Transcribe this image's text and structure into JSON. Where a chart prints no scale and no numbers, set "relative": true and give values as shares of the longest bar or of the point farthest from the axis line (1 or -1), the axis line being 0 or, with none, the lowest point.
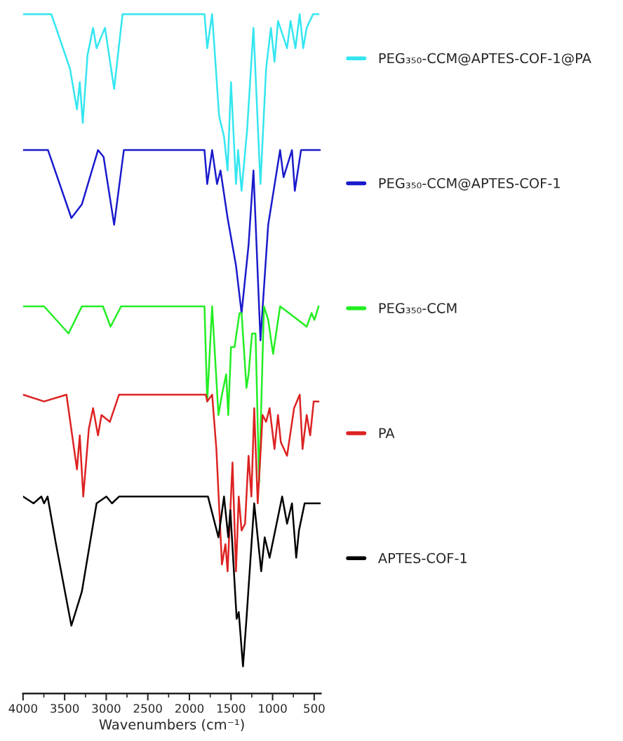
{
  "chart_data": {
    "type": "line",
    "relative": true,
    "xlabel": "Wavenumbers (cm⁻¹)",
    "xlim": [
      4000,
      420
    ],
    "xticks": [
      4000,
      3500,
      3000,
      2500,
      2000,
      1500,
      1000,
      500
    ],
    "legend": "right",
    "grid": false,
    "marker": "none",
    "line_style": "solid",
    "tick_labels": "x",
    "series": [
      {
        "name": "PEG₃₅₀-CCM@APTES-COF-1@PA",
        "color": "#33e6f0",
        "x": [
          4000,
          3800,
          3660,
          3436,
          3352,
          3318,
          3282,
          3225,
          3158,
          3116,
          3015,
          2905,
          2804,
          1979,
          1819,
          1786,
          1727,
          1643,
          1584,
          1541,
          1500,
          1440,
          1415,
          1373,
          1306,
          1230,
          1146,
          1078,
          1020,
          977,
          935,
          826,
          784,
          725,
          674,
          632,
          590,
          514,
          447
        ],
        "values": [
          1.0,
          1.0,
          1.0,
          0.92,
          0.86,
          0.9,
          0.84,
          0.94,
          0.98,
          0.95,
          0.98,
          0.89,
          1.0,
          1.0,
          1.0,
          0.95,
          1.0,
          0.85,
          0.82,
          0.77,
          0.9,
          0.75,
          0.8,
          0.74,
          0.83,
          0.98,
          0.75,
          0.92,
          0.98,
          0.93,
          0.99,
          0.95,
          0.99,
          0.95,
          1.0,
          0.95,
          0.98,
          1.0,
          1.0
        ]
      },
      {
        "name": "PEG₃₅₀-CCM@APTES-COF-1",
        "color": "#1a1acc",
        "x": [
          4000,
          3700,
          3419,
          3293,
          3099,
          3032,
          2905,
          2788,
          1819,
          1786,
          1727,
          1668,
          1626,
          1541,
          1440,
          1373,
          1331,
          1289,
          1230,
          1146,
          1053,
          910,
          868,
          767,
          733,
          658,
          430
        ],
        "values": [
          0.8,
          0.8,
          0.7,
          0.72,
          0.8,
          0.79,
          0.69,
          0.8,
          0.8,
          0.75,
          0.8,
          0.75,
          0.77,
          0.7,
          0.63,
          0.56,
          0.61,
          0.66,
          0.77,
          0.52,
          0.69,
          0.8,
          0.76,
          0.8,
          0.74,
          0.8,
          0.8
        ]
      },
      {
        "name": "PEG₃₅₀-CCM",
        "color": "#22ee22",
        "x": [
          4000,
          3747,
          3453,
          3293,
          3040,
          2948,
          2821,
          1819,
          1786,
          1727,
          1651,
          1609,
          1558,
          1533,
          1500,
          1457,
          1398,
          1373,
          1314,
          1289,
          1247,
          1205,
          1162,
          1104,
          1053,
          994,
          910,
          800,
          590,
          531,
          497,
          447
        ],
        "values": [
          0.57,
          0.57,
          0.53,
          0.57,
          0.57,
          0.54,
          0.57,
          0.57,
          0.43,
          0.57,
          0.41,
          0.44,
          0.47,
          0.41,
          0.51,
          0.51,
          0.56,
          0.56,
          0.45,
          0.47,
          0.53,
          0.53,
          0.31,
          0.57,
          0.55,
          0.5,
          0.57,
          0.56,
          0.54,
          0.56,
          0.55,
          0.57
        ]
      },
      {
        "name": "PA",
        "color": "#dd2222",
        "x": [
          4000,
          3747,
          3478,
          3352,
          3318,
          3276,
          3209,
          3158,
          3099,
          3057,
          2956,
          2846,
          1802,
          1786,
          1727,
          1676,
          1609,
          1567,
          1541,
          1482,
          1440,
          1407,
          1373,
          1331,
          1289,
          1255,
          1221,
          1179,
          1120,
          1078,
          1036,
          977,
          935,
          901,
          826,
          742,
          674,
          640,
          590,
          548,
          506,
          447
        ],
        "values": [
          0.44,
          0.43,
          0.44,
          0.33,
          0.38,
          0.29,
          0.39,
          0.42,
          0.38,
          0.41,
          0.4,
          0.44,
          0.44,
          0.43,
          0.44,
          0.36,
          0.19,
          0.22,
          0.18,
          0.34,
          0.18,
          0.29,
          0.24,
          0.25,
          0.35,
          0.29,
          0.42,
          0.28,
          0.41,
          0.4,
          0.42,
          0.36,
          0.41,
          0.37,
          0.35,
          0.42,
          0.44,
          0.36,
          0.41,
          0.38,
          0.43,
          0.43
        ]
      },
      {
        "name": "APTES-COF-1",
        "color": "#000000",
        "x": [
          4000,
          3874,
          3780,
          3747,
          3705,
          3604,
          3419,
          3293,
          3116,
          2998,
          2931,
          2846,
          2366,
          1777,
          1651,
          1584,
          1533,
          1508,
          1432,
          1407,
          1356,
          1314,
          1221,
          1137,
          1095,
          1036,
          885,
          826,
          767,
          716,
          683,
          615,
          506,
          430
        ],
        "values": [
          0.29,
          0.28,
          0.29,
          0.28,
          0.29,
          0.22,
          0.1,
          0.15,
          0.28,
          0.29,
          0.28,
          0.29,
          0.29,
          0.29,
          0.23,
          0.29,
          0.23,
          0.27,
          0.11,
          0.12,
          0.04,
          0.11,
          0.28,
          0.18,
          0.23,
          0.2,
          0.29,
          0.25,
          0.28,
          0.2,
          0.24,
          0.28,
          0.28,
          0.28
        ]
      }
    ]
  }
}
